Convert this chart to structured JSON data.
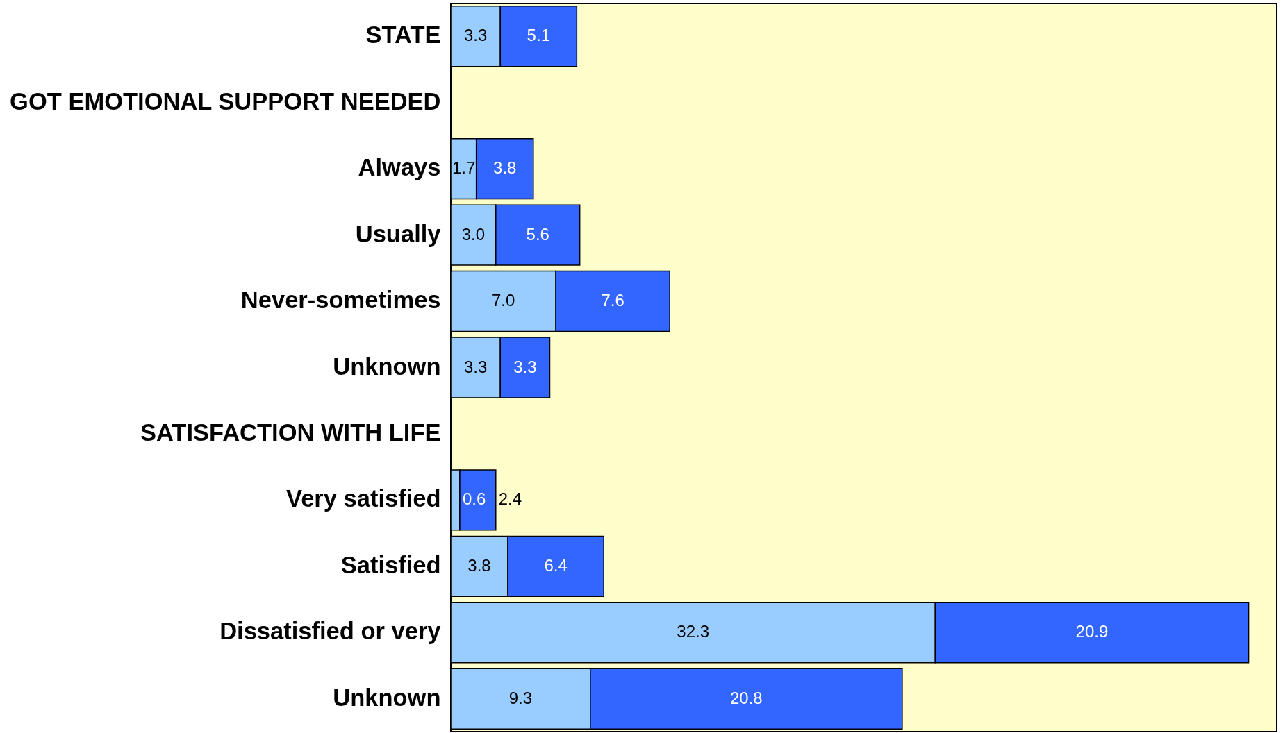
{
  "chart_data": {
    "type": "bar",
    "orientation": "horizontal",
    "stacked": true,
    "categories": [
      "STATE",
      "GOT EMOTIONAL SUPPORT NEEDED",
      "Always",
      "Usually",
      "Never-sometimes",
      "Unknown",
      "SATISFACTION WITH LIFE",
      "Very satisfied",
      "Satisfied",
      "Dissatisfied or very",
      "Unknown"
    ],
    "series": [
      {
        "color": "#99ccff",
        "values": [
          3.3,
          null,
          1.7,
          3.0,
          7.0,
          3.3,
          null,
          0.6,
          3.8,
          32.3,
          9.3
        ],
        "value_labels": [
          "3.3",
          null,
          "1.7",
          "3.0",
          "7.0",
          "3.3",
          null,
          "0.6",
          "3.8",
          "32.3",
          "9.3"
        ]
      },
      {
        "color": "#3366ff",
        "values": [
          5.1,
          null,
          3.8,
          5.6,
          7.6,
          3.3,
          null,
          2.4,
          6.4,
          20.9,
          20.8
        ],
        "value_labels": [
          "5.1",
          null,
          "3.8",
          "5.6",
          "7.6",
          "3.3",
          null,
          "2.4",
          "6.4",
          "20.9",
          "20.8"
        ]
      }
    ]
  }
}
